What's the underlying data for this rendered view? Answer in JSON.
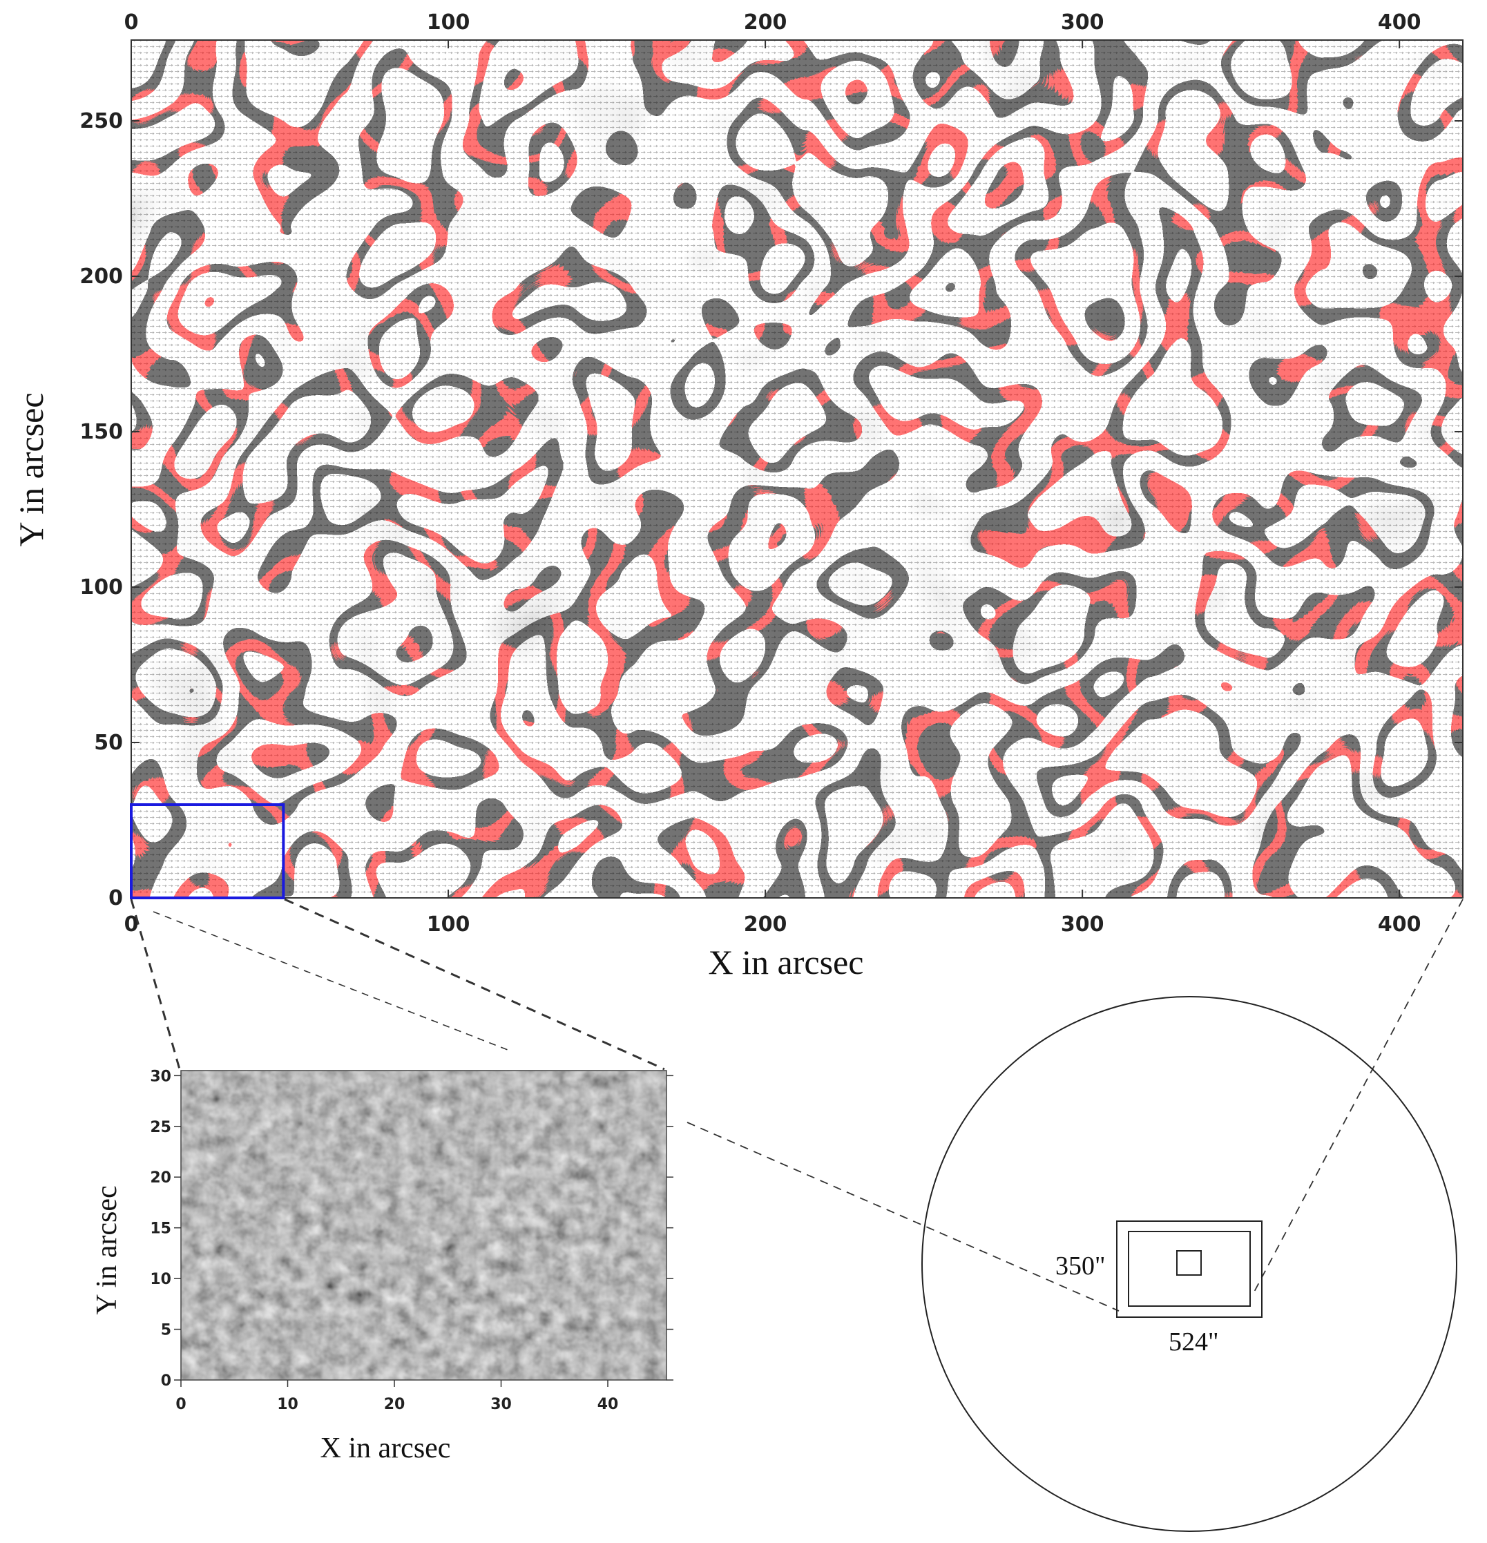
{
  "main_map": {
    "x_ticks": [
      "0",
      "100",
      "200",
      "300",
      "400"
    ],
    "x_tick_values": [
      0,
      100,
      200,
      300,
      400
    ],
    "y_ticks": [
      "0",
      "50",
      "100",
      "150",
      "200",
      "250"
    ],
    "y_tick_values": [
      0,
      50,
      100,
      150,
      200,
      250
    ],
    "xlim": [
      0,
      420
    ],
    "ylim": [
      0,
      276
    ],
    "xlabel": "X in arcsec",
    "ylabel": "Y in arcsec",
    "zoom_box": {
      "x0": 0,
      "x1": 48,
      "y0": 0,
      "y1": 30,
      "color": "#1a1adf"
    },
    "contour_color": "#d94040"
  },
  "inset": {
    "x_ticks": [
      "0",
      "10",
      "20",
      "30",
      "40"
    ],
    "x_tick_values": [
      0,
      10,
      20,
      30,
      40
    ],
    "y_ticks": [
      "0",
      "5",
      "10",
      "15",
      "20",
      "25",
      "30"
    ],
    "y_tick_values": [
      0,
      5,
      10,
      15,
      20,
      25,
      30
    ],
    "xlim": [
      0,
      45.5
    ],
    "ylim": [
      0,
      30.5
    ],
    "xlabel": "X in arcsec",
    "ylabel": "Y in arcsec"
  },
  "disk": {
    "label_height": "350\"",
    "label_width": "524\""
  }
}
